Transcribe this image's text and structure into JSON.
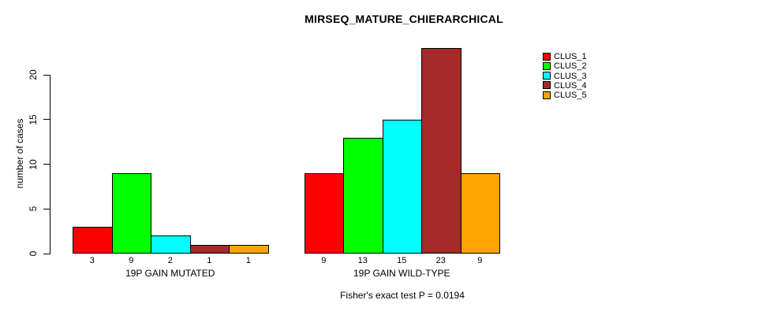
{
  "chart_data": {
    "type": "bar",
    "title": "MIRSEQ_MATURE_CHIERARCHICAL",
    "ylabel": "number of cases",
    "ylim": [
      0,
      23
    ],
    "yticks": [
      0,
      5,
      10,
      15,
      20
    ],
    "grid": false,
    "legend_position": "right-outside",
    "categories": [
      "19P GAIN MUTATED",
      "19P GAIN WILD-TYPE"
    ],
    "series": [
      {
        "name": "CLUS_1",
        "color": "#FF0000",
        "values": [
          3,
          9
        ]
      },
      {
        "name": "CLUS_2",
        "color": "#00FF00",
        "values": [
          9,
          13
        ]
      },
      {
        "name": "CLUS_3",
        "color": "#00FFFF",
        "values": [
          2,
          15
        ]
      },
      {
        "name": "CLUS_4",
        "color": "#A52A2A",
        "values": [
          1,
          23
        ]
      },
      {
        "name": "CLUS_5",
        "color": "#FFA500",
        "values": [
          1,
          9
        ]
      }
    ],
    "bar_value_labels": [
      [
        "3",
        "9",
        "2",
        "1",
        "1"
      ],
      [
        "9",
        "13",
        "15",
        "23",
        "9"
      ]
    ],
    "annotation": "Fisher's exact test P = 0.0194"
  }
}
